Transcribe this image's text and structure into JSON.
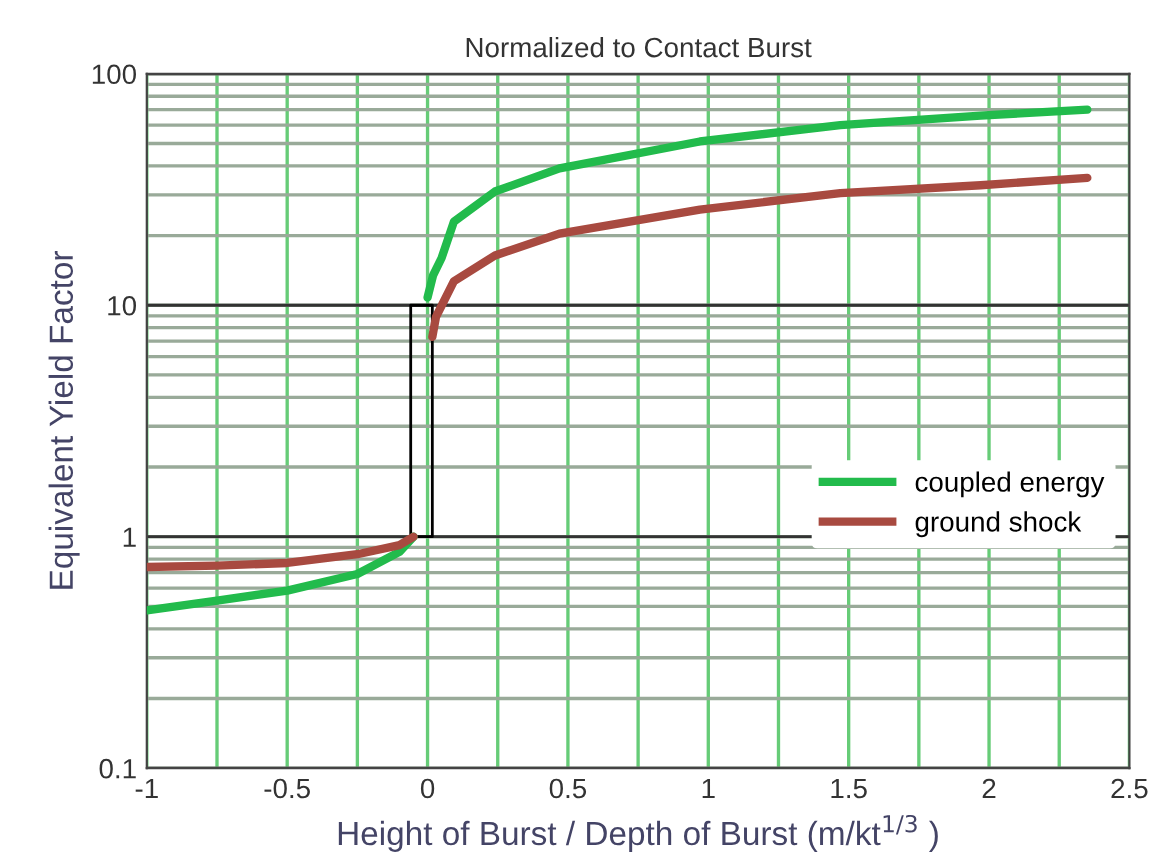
{
  "chart_data": {
    "type": "line",
    "title": "Normalized to Contact Burst",
    "xlabel": "Height of Burst / Depth of Burst (m/kt$^{1/3}$ )",
    "ylabel": "Equivalent Yield Factor",
    "log": "y",
    "xlim": [
      -1,
      2.5
    ],
    "ylim": [
      0.1,
      100
    ],
    "xticks": [
      -1,
      {
        "value": -0.75,
        "label": null
      },
      -0.5,
      {
        "value": -0.25,
        "label": null
      },
      0,
      {
        "value": 0.25,
        "label": null
      },
      0.5,
      {
        "value": 0.75,
        "label": null
      },
      1,
      {
        "value": 1.25,
        "label": null
      },
      1.5,
      {
        "value": 1.75,
        "label": null
      },
      2,
      {
        "value": 2.25,
        "label": null
      },
      2.5
    ],
    "yticks": [
      0.1,
      {
        "value": 0.2,
        "label": null
      },
      {
        "value": 0.3,
        "label": null
      },
      {
        "value": 0.4,
        "label": null
      },
      {
        "value": 0.5,
        "label": null
      },
      {
        "value": 0.6,
        "label": null
      },
      {
        "value": 0.7,
        "label": null
      },
      {
        "value": 0.8,
        "label": null
      },
      {
        "value": 0.9,
        "label": null
      },
      1,
      {
        "value": 2,
        "label": null
      },
      {
        "value": 3,
        "label": null
      },
      {
        "value": 4,
        "label": null
      },
      {
        "value": 5,
        "label": null
      },
      {
        "value": 6,
        "label": null
      },
      {
        "value": 7,
        "label": null
      },
      {
        "value": 8,
        "label": null
      },
      {
        "value": 9,
        "label": null
      },
      10,
      {
        "value": 20,
        "label": null
      },
      {
        "value": 30,
        "label": null
      },
      {
        "value": 40,
        "label": null
      },
      {
        "value": 50,
        "label": null
      },
      {
        "value": 60,
        "label": null
      },
      {
        "value": 70,
        "label": null
      },
      {
        "value": 80,
        "label": null
      },
      {
        "value": 90,
        "label": null
      },
      100
    ],
    "grid": true,
    "legend": "right",
    "marker": "none",
    "line_style": "solid",
    "series": [
      {
        "name": "coupled energy",
        "color": "#22bb4c",
        "x": [
          -1,
          -0.75,
          -0.5,
          -0.25,
          -0.1,
          -0.05,
          null,
          0,
          0.02,
          0.05,
          0.094,
          0.24,
          0.47,
          0.97,
          1.47,
          1.97,
          2.35
        ],
        "values": [
          0.48,
          0.53,
          0.585,
          0.69,
          0.86,
          1.0,
          null,
          10.8,
          13.5,
          16,
          23,
          31,
          39,
          51,
          60,
          66,
          70
        ]
      },
      {
        "name": "ground shock",
        "color": "#a84a40",
        "x": [
          -1,
          -0.75,
          -0.5,
          -0.25,
          -0.1,
          -0.05,
          null,
          0.017,
          0.03,
          0.094,
          0.24,
          0.47,
          0.97,
          1.47,
          1.97,
          2.35
        ],
        "values": [
          0.74,
          0.75,
          0.77,
          0.84,
          0.92,
          1.0,
          null,
          7.3,
          8.9,
          12.7,
          16.4,
          20.4,
          25.9,
          30.5,
          33,
          35.5
        ]
      }
    ]
  }
}
